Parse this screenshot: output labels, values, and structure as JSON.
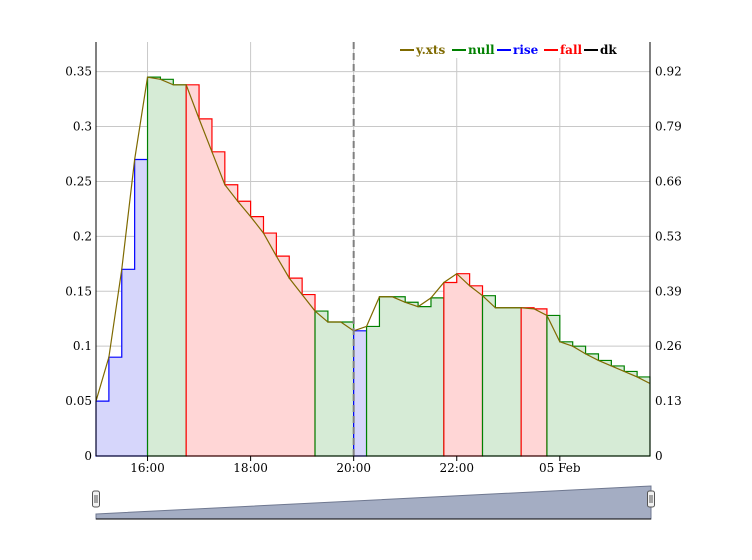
{
  "chart_data": {
    "type": "area",
    "x_axis": {
      "ticks": [
        "16:00",
        "18:00",
        "20:00",
        "22:00",
        "05 Feb"
      ],
      "tick_hours": [
        16,
        18,
        20,
        22,
        24
      ],
      "range_hours": [
        15,
        25.75
      ]
    },
    "y_axis_left": {
      "ticks": [
        "0",
        "0.05",
        "0.1",
        "0.15",
        "0.2",
        "0.25",
        "0.3",
        "0.35"
      ],
      "range": [
        0,
        0.377
      ]
    },
    "y_axis_right": {
      "ticks": [
        "0",
        "0.13",
        "0.26",
        "0.39",
        "0.53",
        "0.66",
        "0.79",
        "0.92"
      ]
    },
    "event_line_hour": 20,
    "legend": {
      "position": "top-right",
      "items": [
        {
          "label": "y.xts",
          "color": "#7f6a00"
        },
        {
          "label": "null",
          "color": "#008000"
        },
        {
          "label": "rise",
          "color": "#0000ff"
        },
        {
          "label": "fall",
          "color": "#ff0000"
        },
        {
          "label": "dk",
          "color": "#000000"
        }
      ]
    },
    "series": [
      {
        "name": "y.xts",
        "x": [
          15.0,
          15.25,
          15.5,
          15.75,
          16.0,
          16.25,
          16.5,
          16.75,
          17.0,
          17.25,
          17.5,
          17.75,
          18.0,
          18.25,
          18.5,
          18.75,
          19.0,
          19.25,
          19.5,
          19.75,
          20.0,
          20.25,
          20.5,
          20.75,
          21.0,
          21.25,
          21.5,
          21.75,
          22.0,
          22.25,
          22.5,
          22.75,
          23.0,
          23.25,
          23.5,
          23.75,
          24.0,
          24.25,
          24.5,
          24.75,
          25.0,
          25.25,
          25.5,
          25.75
        ],
        "values": [
          0.05,
          0.09,
          0.17,
          0.27,
          0.345,
          0.343,
          0.338,
          0.338,
          0.307,
          0.277,
          0.247,
          0.232,
          0.218,
          0.203,
          0.182,
          0.162,
          0.147,
          0.132,
          0.122,
          0.122,
          0.114,
          0.118,
          0.145,
          0.145,
          0.14,
          0.136,
          0.144,
          0.158,
          0.166,
          0.155,
          0.146,
          0.135,
          0.135,
          0.135,
          0.134,
          0.128,
          0.104,
          0.1,
          0.093,
          0.087,
          0.082,
          0.077,
          0.072,
          0.066
        ],
        "color": "#7f6a00"
      }
    ],
    "regimes": [
      {
        "type": "rise",
        "from": 15.0,
        "to": 16.0,
        "color": "#0000ff",
        "fill": "#d6d6fb"
      },
      {
        "type": "null",
        "from": 16.0,
        "to": 16.75,
        "color": "#008000",
        "fill": "#d6ebd6"
      },
      {
        "type": "fall",
        "from": 16.75,
        "to": 19.25,
        "color": "#ff0000",
        "fill": "#ffd6d6"
      },
      {
        "type": "null",
        "from": 19.25,
        "to": 20.0,
        "color": "#008000",
        "fill": "#d6ebd6"
      },
      {
        "type": "rise",
        "from": 20.0,
        "to": 20.25,
        "color": "#0000ff",
        "fill": "#d6d6fb"
      },
      {
        "type": "null",
        "from": 20.25,
        "to": 21.75,
        "color": "#008000",
        "fill": "#d6ebd6"
      },
      {
        "type": "fall",
        "from": 21.75,
        "to": 22.5,
        "color": "#ff0000",
        "fill": "#ffd6d6"
      },
      {
        "type": "null",
        "from": 22.5,
        "to": 23.25,
        "color": "#008000",
        "fill": "#d6ebd6"
      },
      {
        "type": "fall",
        "from": 23.25,
        "to": 23.75,
        "color": "#ff0000",
        "fill": "#ffd6d6"
      },
      {
        "type": "null",
        "from": 23.75,
        "to": 25.75,
        "color": "#008000",
        "fill": "#d6ebd6"
      }
    ],
    "grid": true,
    "range_selector": true
  }
}
